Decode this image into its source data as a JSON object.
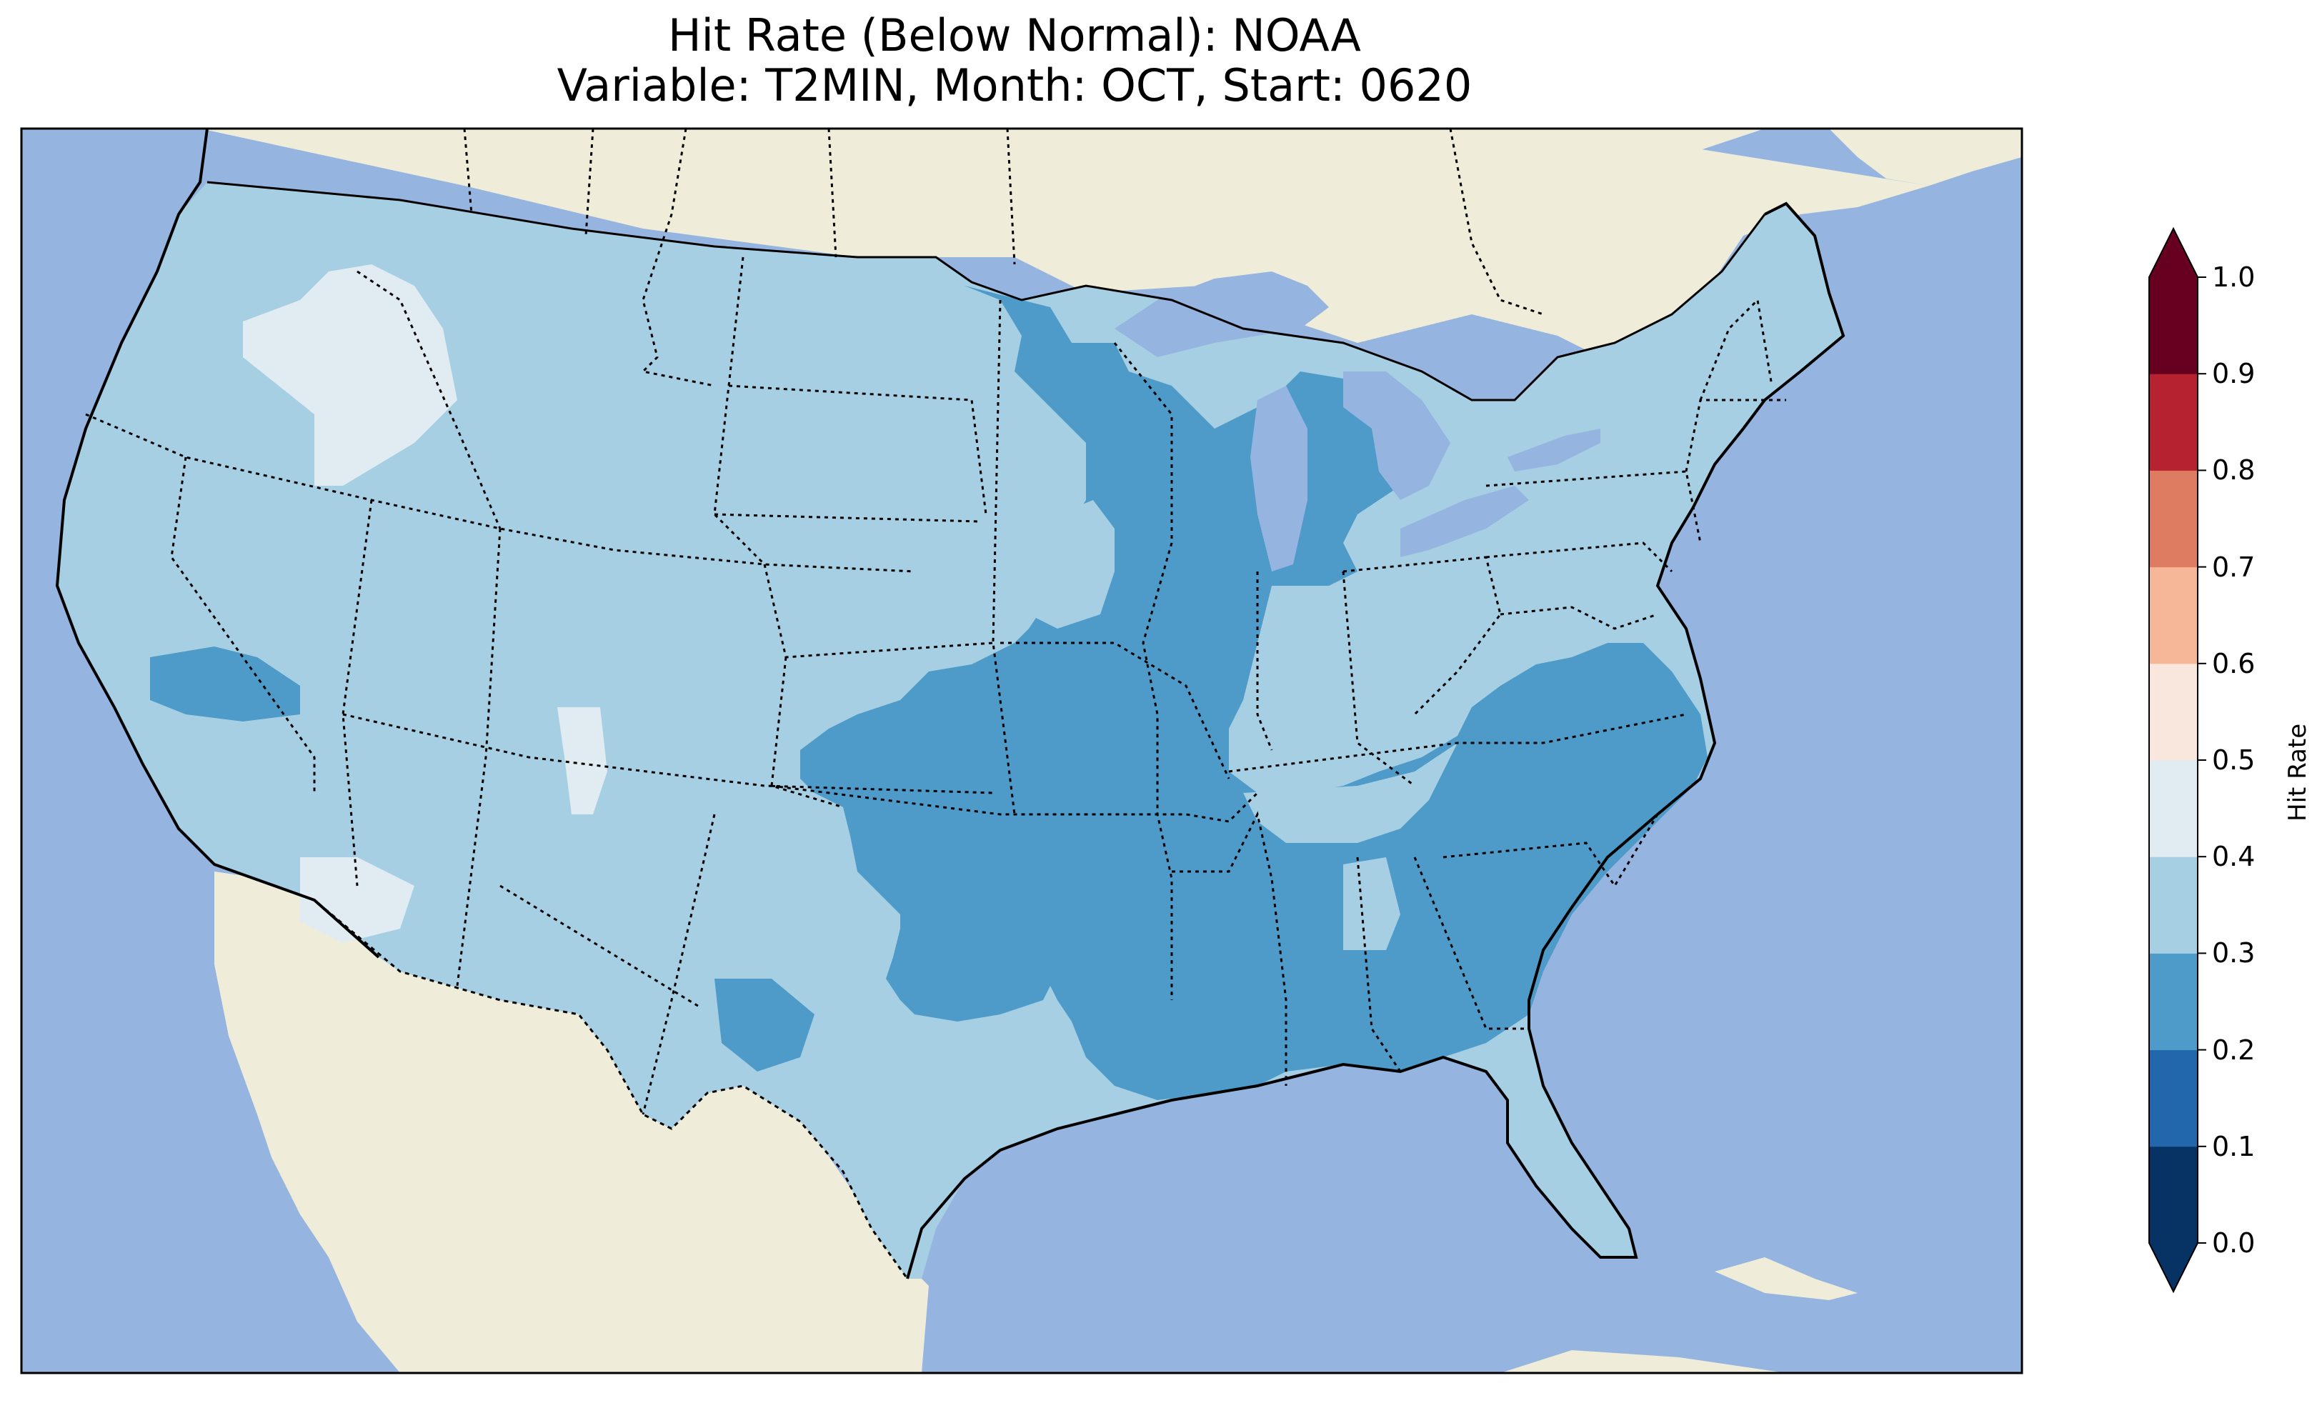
{
  "title": {
    "line1": "Hit Rate (Below Normal): NOAA",
    "line2": "Variable: T2MIN, Month: OCT, Start: 0620"
  },
  "colors": {
    "ocean": "#95b4e0",
    "land": "#efedd9",
    "lake": "#95b4e0",
    "frame": "#000000"
  },
  "colorbar": {
    "label": "Hit Rate",
    "ticks": [
      "0.0",
      "0.1",
      "0.2",
      "0.3",
      "0.4",
      "0.5",
      "0.6",
      "0.7",
      "0.8",
      "0.9",
      "1.0"
    ],
    "bins": [
      {
        "range": [
          0.0,
          0.1
        ],
        "color": "#063264"
      },
      {
        "range": [
          0.1,
          0.2
        ],
        "color": "#2266ac"
      },
      {
        "range": [
          0.2,
          0.3
        ],
        "color": "#4e9ac8"
      },
      {
        "range": [
          0.3,
          0.4
        ],
        "color": "#a6cfe3"
      },
      {
        "range": [
          0.4,
          0.5
        ],
        "color": "#e1ebf2"
      },
      {
        "range": [
          0.5,
          0.6
        ],
        "color": "#f9e6dd"
      },
      {
        "range": [
          0.6,
          0.7
        ],
        "color": "#f5b797"
      },
      {
        "range": [
          0.7,
          0.8
        ],
        "color": "#de7c62"
      },
      {
        "range": [
          0.8,
          0.9
        ],
        "color": "#b6222f"
      },
      {
        "range": [
          0.9,
          1.0
        ],
        "color": "#670020"
      }
    ],
    "extend": "both"
  },
  "map": {
    "region": "Contiguous United States",
    "dominant_hit_rate_bin": [
      0.3,
      0.4
    ],
    "secondary_hit_rate_bin": [
      0.2,
      0.3
    ],
    "minor_hit_rate_bin": [
      0.4,
      0.5
    ]
  }
}
